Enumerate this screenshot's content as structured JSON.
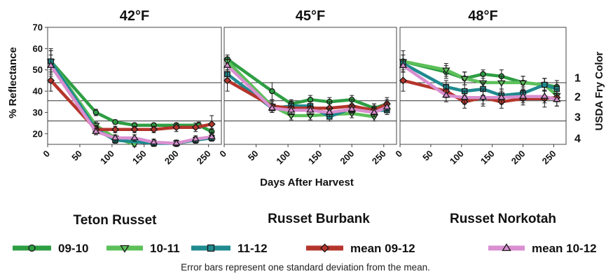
{
  "colors": {
    "09-10": "#2e9e43",
    "10-11": "#5cc05a",
    "11-12": "#1f8a8f",
    "mean 09-12": "#b5352c",
    "mean 10-12": "#d98fd0"
  },
  "markers": {
    "09-10": "circle",
    "10-11": "triangle-down",
    "11-12": "square",
    "mean 09-12": "diamond",
    "mean 10-12": "triangle-up"
  },
  "varieties": [
    "Teton Russet",
    "Russet Burbank",
    "Russet Norkotah"
  ],
  "footnote": "Error bars represent one standard deviation from the mean.",
  "chart_data": [
    {
      "type": "line",
      "title": "42°F",
      "xlabel": "Days After Harvest",
      "ylabel": "% Reflectance",
      "xlim": [
        0,
        270
      ],
      "ylim": [
        15,
        70
      ],
      "xticks": [
        "0",
        "50",
        "100",
        "150",
        "200",
        "250"
      ],
      "yticks": [
        "20",
        "30",
        "40",
        "50",
        "60",
        "70"
      ],
      "y2label": "",
      "y2ticks": [],
      "hlines": [
        44,
        35.5,
        26
      ],
      "series": [
        {
          "name": "09-10",
          "x": [
            5,
            75,
            105,
            135,
            165,
            200,
            235,
            255
          ],
          "y": [
            54,
            30,
            25.5,
            24,
            24,
            24,
            24,
            21
          ],
          "err": [
            6,
            1.5,
            1,
            1,
            1,
            1,
            1.5,
            1.5
          ]
        },
        {
          "name": "10-11",
          "x": [
            5,
            75,
            105,
            135
          ],
          "y": [
            54,
            24,
            18,
            15
          ],
          "err": [
            5,
            1.5,
            1,
            1
          ]
        },
        {
          "name": "11-12",
          "x": [
            5,
            75,
            105,
            165,
            200,
            230,
            255
          ],
          "y": [
            54,
            22,
            17,
            15.5,
            15.5,
            17,
            18
          ],
          "err": [
            5,
            1.5,
            1.5,
            1.5,
            1.5,
            1.5,
            1.5
          ]
        },
        {
          "name": "mean 09-12",
          "x": [
            5,
            75,
            105,
            135,
            165,
            200,
            230,
            255
          ],
          "y": [
            45,
            22,
            22,
            22,
            22,
            23,
            23,
            24.5
          ],
          "err": [
            5,
            2,
            1.5,
            1.5,
            1.5,
            2,
            2,
            4
          ]
        },
        {
          "name": "mean 10-12",
          "x": [
            5,
            75,
            105,
            135,
            165,
            200,
            230,
            255
          ],
          "y": [
            52,
            21,
            18,
            18,
            16,
            15.5,
            17.5,
            18.5
          ],
          "err": [
            5,
            1.5,
            1.5,
            1.5,
            1.5,
            1.5,
            1.5,
            2
          ]
        }
      ]
    },
    {
      "type": "line",
      "title": "45°F",
      "xlabel": "Days After Harvest",
      "ylabel": "% Reflectance",
      "xlim": [
        0,
        270
      ],
      "ylim": [
        15,
        70
      ],
      "xticks": [
        "0",
        "50",
        "100",
        "150",
        "200",
        "250"
      ],
      "yticks": [],
      "y2label": "",
      "y2ticks": [],
      "hlines": [
        44,
        35.5,
        26
      ],
      "series": [
        {
          "name": "09-10",
          "x": [
            5,
            75,
            105,
            135,
            165,
            200,
            235,
            255
          ],
          "y": [
            55,
            40,
            34,
            36,
            35,
            36,
            32,
            34
          ],
          "err": [
            2,
            4,
            2,
            2,
            2,
            2,
            2,
            2
          ]
        },
        {
          "name": "10-11",
          "x": [
            5,
            75,
            105,
            135,
            165,
            200,
            235
          ],
          "y": [
            54,
            33,
            28.5,
            28.5,
            29,
            29.5,
            28
          ],
          "err": [
            2,
            2,
            2,
            2,
            2,
            2,
            2
          ]
        },
        {
          "name": "11-12",
          "x": [
            5,
            75,
            105,
            135,
            165,
            200,
            235,
            255
          ],
          "y": [
            48,
            32,
            33,
            33,
            28,
            32,
            31,
            31
          ],
          "err": [
            2,
            2,
            2,
            2,
            2,
            2,
            2,
            2
          ]
        },
        {
          "name": "mean 09-12",
          "x": [
            5,
            75,
            105,
            135,
            165,
            200,
            235,
            255
          ],
          "y": [
            45,
            33,
            32,
            32,
            32,
            33,
            31,
            34
          ],
          "err": [
            5,
            3,
            3,
            3,
            3,
            3,
            3,
            3
          ]
        },
        {
          "name": "mean 10-12",
          "x": [
            5,
            75,
            105,
            135,
            165,
            200,
            235,
            255
          ],
          "y": [
            52,
            32,
            31,
            31,
            30,
            31.5,
            30,
            32.5
          ],
          "err": [
            3,
            2,
            2,
            2,
            2,
            2,
            2,
            2
          ]
        }
      ]
    },
    {
      "type": "line",
      "title": "48°F",
      "xlabel": "Days After Harvest",
      "ylabel": "% Reflectance",
      "xlim": [
        0,
        270
      ],
      "ylim": [
        15,
        70
      ],
      "xticks": [
        "0",
        "50",
        "100",
        "150",
        "200",
        "250"
      ],
      "yticks": [],
      "y2label": "USDA Fry Color",
      "y2ticks": [
        {
          "label": "1",
          "value": 46.5
        },
        {
          "label": "2",
          "value": 37.5
        },
        {
          "label": "3",
          "value": 28
        },
        {
          "label": "4",
          "value": 18
        }
      ],
      "hlines": [
        44,
        35.5,
        26
      ],
      "series": [
        {
          "name": "09-10",
          "x": [
            5,
            75,
            105,
            135,
            165,
            200,
            235,
            255
          ],
          "y": [
            54,
            49,
            46,
            48,
            47,
            44,
            43,
            42
          ],
          "err": [
            5,
            3,
            3,
            2,
            3,
            3,
            3,
            3
          ]
        },
        {
          "name": "10-11",
          "x": [
            5,
            75,
            105,
            135,
            165,
            200,
            235,
            255
          ],
          "y": [
            54,
            50,
            46,
            44,
            44,
            44,
            43,
            38
          ],
          "err": [
            3,
            3,
            3,
            3,
            3,
            3,
            3,
            3
          ]
        },
        {
          "name": "11-12",
          "x": [
            5,
            75,
            105,
            135,
            165,
            200,
            235,
            255
          ],
          "y": [
            53,
            42,
            40,
            41,
            38,
            39,
            43,
            41
          ],
          "err": [
            4,
            3,
            3,
            3,
            3,
            3,
            3,
            3
          ]
        },
        {
          "name": "mean 09-12",
          "x": [
            5,
            75,
            105,
            135,
            165,
            200,
            235,
            255
          ],
          "y": [
            45,
            40,
            35,
            37,
            35,
            36.5,
            36.5,
            37
          ],
          "err": [
            5,
            3,
            3,
            4,
            3,
            3,
            4,
            4
          ]
        },
        {
          "name": "mean 10-12",
          "x": [
            5,
            75,
            105,
            135,
            165,
            200,
            235,
            255
          ],
          "y": [
            52,
            38,
            37,
            37,
            37,
            37.5,
            37.5,
            36
          ],
          "err": [
            3,
            3,
            3,
            3,
            3,
            3,
            3,
            3
          ]
        }
      ]
    }
  ]
}
